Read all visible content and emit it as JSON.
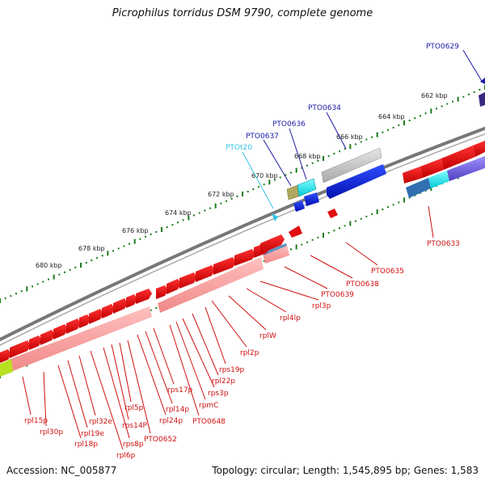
{
  "title": "Picrophilus torridus DSM 9790, complete genome",
  "footer": {
    "accession": "Accession: NC_005877",
    "topology": "Topology: circular; Length: 1,545,895 bp; Genes: 1,583"
  },
  "kbp_labels": [
    "662 kbp",
    "664 kbp",
    "666 kbp",
    "668 kbp",
    "670 kbp",
    "672 kbp",
    "674 kbp",
    "676 kbp",
    "678 kbp",
    "680 kbp"
  ],
  "upper_labels": [
    {
      "text": "PTO0629",
      "color": "#1a1aa6"
    },
    {
      "text": "PTO0634",
      "color": "#1a1aa6"
    },
    {
      "text": "PTO0636",
      "color": "#1a1aa6"
    },
    {
      "text": "PTO0637",
      "color": "#1a1aa6"
    },
    {
      "text": "PTOt20",
      "color": "#33c4e6"
    }
  ],
  "lower_labels": [
    {
      "text": "PTO0633"
    },
    {
      "text": "PTO0635"
    },
    {
      "text": "PTO0638"
    },
    {
      "text": "PTO0639"
    },
    {
      "text": "rpl3p"
    },
    {
      "text": "rpl4lp"
    },
    {
      "text": "rplW"
    },
    {
      "text": "rpl2p"
    },
    {
      "text": "rps19p"
    },
    {
      "text": "rpl22p"
    },
    {
      "text": "rps3p"
    },
    {
      "text": "rpmC"
    },
    {
      "text": "PTO0648"
    },
    {
      "text": "rps17p"
    },
    {
      "text": "rpl14p"
    },
    {
      "text": "rpl24p"
    },
    {
      "text": "PTO0652"
    },
    {
      "text": "rpl5p"
    },
    {
      "text": "rps14P"
    },
    {
      "text": "rps8p"
    },
    {
      "text": "rpl6p"
    },
    {
      "text": "rpl32e"
    },
    {
      "text": "rpl19e"
    },
    {
      "text": "rpl18p"
    },
    {
      "text": "rpl30p"
    },
    {
      "text": "rpl15p"
    }
  ],
  "colors": {
    "backbone": "#7a7a7a",
    "red_gene": "#e01010",
    "pink_gene": "#f5a0a0",
    "blue_gene": "#1030d8",
    "grey_gene": "#c8c8c8",
    "cyan_gene": "#10e0e0",
    "tick": "#1a7a1a",
    "blue_label": "#1a1aa6",
    "red_label": "#d01010"
  }
}
